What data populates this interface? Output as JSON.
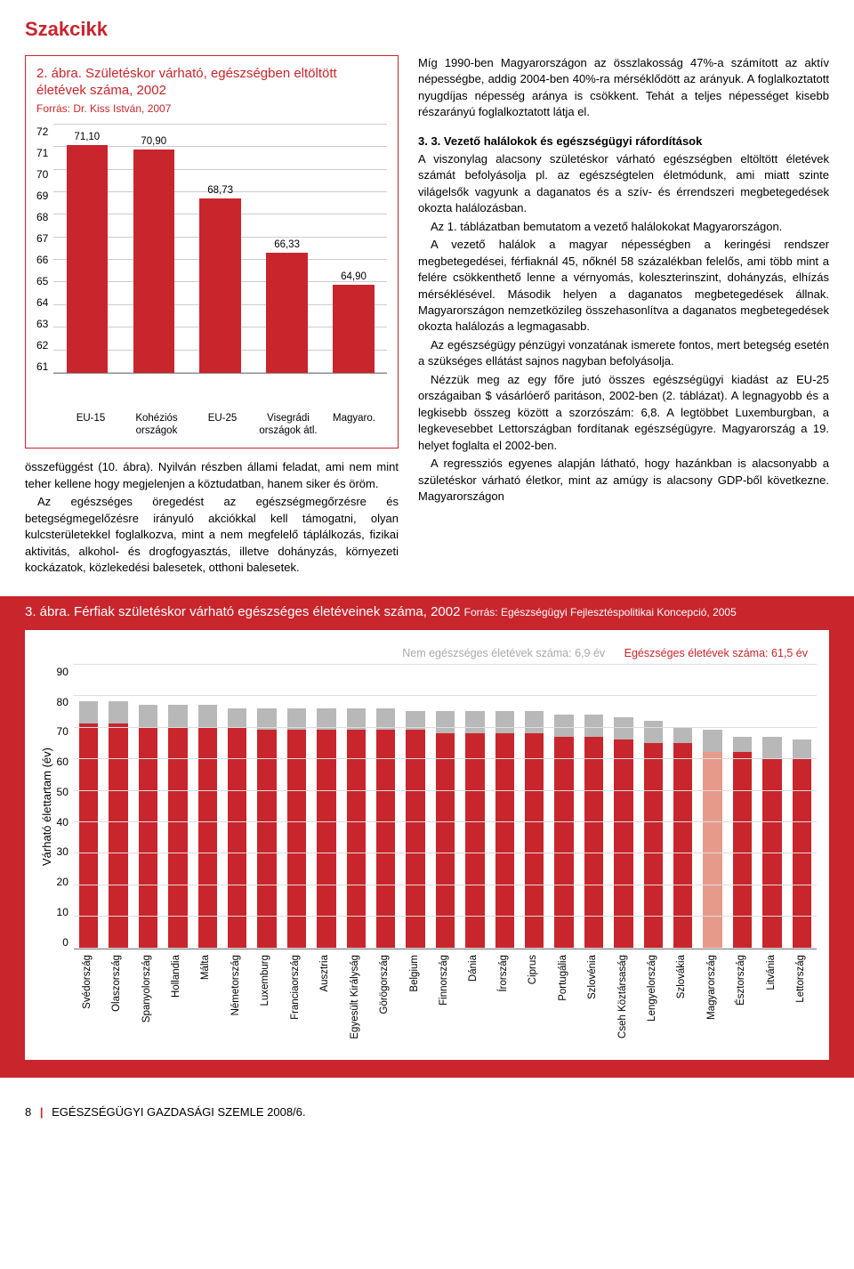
{
  "section_header": "Szakcikk",
  "chart2": {
    "type": "bar",
    "title": "2. ábra. Születéskor várható, egészségben eltöltött életévek száma, 2002",
    "source": "Forrás: Dr. Kiss István, 2007",
    "ylim": [
      61,
      72
    ],
    "ytick_step": 1,
    "label_fontsize": 11.5,
    "bar_color": "#c9252c",
    "grid_color": "#cccccc",
    "categories": [
      "EU-15",
      "Kohéziós országok",
      "EU-25",
      "Visegrádi országok átl.",
      "Magyaro."
    ],
    "values": [
      71.1,
      70.9,
      68.73,
      66.33,
      64.9
    ],
    "value_labels": [
      "71,10",
      "70,90",
      "68,73",
      "66,33",
      "64,90"
    ]
  },
  "text": {
    "left_p1": "összefüggést (10. ábra). Nyilván részben állami feladat, ami nem mint teher kellene hogy megjelenjen a köztudatban, hanem siker és öröm.",
    "left_p2": "Az egészséges öregedést az egészségmegőrzésre és betegségmegelőzésre irányuló akciókkal kell támogatni, olyan kulcsterületekkel foglalkozva, mint a nem megfelelő táplálkozás, fizikai aktivitás, alkohol- és drogfogyasztás, illetve dohányzás, környezeti kockázatok, közlekedési balesetek, otthoni balesetek.",
    "right_p1": "Míg 1990-ben Magyarországon az összlakosság 47%-a számított az aktív népességbe, addig 2004-ben 40%-ra mérséklődött az arányuk. A foglalkoztatott nyugdíjas népesség aránya is csökkent. Tehát a teljes népességet kisebb részarányú foglalkoztatott látja el.",
    "sub_head": "3. 3. Vezető halálokok és egészségügyi ráfordítások",
    "right_p2": "A viszonylag alacsony születéskor várható egészségben eltöltött életévek számát befolyásolja pl. az egészségtelen életmódunk, ami miatt szinte világelsők vagyunk a daganatos és a szív- és érrendszeri megbetegedések okozta halálozásban.",
    "right_p3": "Az 1. táblázatban bemutatom a vezető halálokokat Magyarországon.",
    "right_p4": "A vezető halálok a magyar népességben a keringési rendszer megbetegedései, férfiaknál 45, nőknél 58 százalékban felelős, ami több mint a felére csökkenthető lenne a vérnyomás, koleszterinszint, dohányzás, elhízás mérséklésével. Második helyen a daganatos megbetegedések állnak. Magyarországon nemzetközileg összehasonlítva a daganatos megbetegedések okozta halálozás a legmagasabb.",
    "right_p5": "Az egészségügy pénzügyi vonzatának ismerete fontos, mert betegség esetén a szükséges ellátást sajnos nagyban befolyásolja.",
    "right_p6": "Nézzük meg az egy főre jutó összes egészségügyi kiadást az EU-25 országaiban $ vásárlóerő paritáson, 2002-ben (2. táblázat). A legnagyobb és a legkisebb összeg között a szorzószám: 6,8. A legtöbbet Luxemburgban, a legkevesebbet Lettországban fordítanak egészségügyre. Magyarország a 19. helyet foglalta el 2002-ben.",
    "right_p7": "A regressziós egyenes alapján látható, hogy hazánkban is alacsonyabb a születéskor várható életkor, mint az amúgy is alacsony GDP-ből következne. Magyarországon"
  },
  "chart3": {
    "type": "stacked-bar",
    "title": "3. ábra. Férfiak születéskor várható egészséges életéveinek száma, 2002",
    "source": "Forrás: Egészségügyi Fejlesztéspolitikai Koncepció, 2005",
    "legend_grey": "Nem egészséges életévek száma: 6,9 év",
    "legend_red": "Egészséges életévek száma: 61,5 év",
    "ylabel": "Várható élettartam (év)",
    "ylim": [
      0,
      90
    ],
    "ytick_step": 10,
    "bar_color_red": "#c9252c",
    "bar_color_grey": "#b8b8b8",
    "bar_color_highlight": "#e79a8a",
    "countries": [
      "Svédország",
      "Olaszország",
      "Spanyolország",
      "Hollandia",
      "Málta",
      "Németország",
      "Luxemburg",
      "Franciaország",
      "Ausztria",
      "Egyesült Királyság",
      "Görögország",
      "Belgium",
      "Finnország",
      "Dánia",
      "Írország",
      "Ciprus",
      "Portugália",
      "Szlovénia",
      "Cseh Köztársaság",
      "Lengyelország",
      "Szlovákia",
      "Magyarország",
      "Észtország",
      "Litvánia",
      "Lettország"
    ],
    "red_values": [
      71,
      71,
      70,
      70,
      70,
      70,
      69,
      69,
      69,
      69,
      69,
      69,
      68,
      68,
      68,
      68,
      67,
      67,
      66,
      65,
      65,
      62,
      62,
      60,
      60
    ],
    "grey_values": [
      7,
      7,
      7,
      7,
      7,
      6,
      7,
      7,
      7,
      7,
      7,
      6,
      7,
      7,
      7,
      7,
      7,
      7,
      7,
      7,
      5,
      7,
      5,
      7,
      6
    ],
    "highlight_index": 21
  },
  "footer": {
    "page": "8",
    "journal": "EGÉSZSÉGÜGYI GAZDASÁGI SZEMLE 2008/6."
  }
}
